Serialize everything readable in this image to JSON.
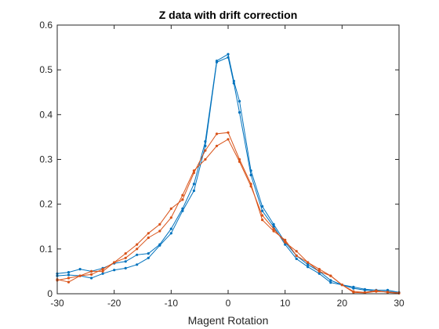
{
  "chart_data": {
    "type": "line",
    "title": "Z data with drift correction",
    "xlabel": "Magent Rotation",
    "ylabel": "",
    "xlim": [
      -30,
      30
    ],
    "ylim": [
      0,
      0.6
    ],
    "xticks": [
      -30,
      -20,
      -10,
      0,
      10,
      20,
      30
    ],
    "xtick_labels": [
      "-30",
      "-20",
      "-10",
      "0",
      "10",
      "20",
      "30"
    ],
    "yticks": [
      0,
      0.1,
      0.2,
      0.3,
      0.4,
      0.5,
      0.6
    ],
    "ytick_labels": [
      "0",
      "0.1",
      "0.2",
      "0.3",
      "0.4",
      "0.5",
      "0.6"
    ],
    "grid": false,
    "legend": "none",
    "series": [
      {
        "color": "#0072BD",
        "x": [
          -30,
          -28,
          -26,
          -24,
          -22,
          -20,
          -18,
          -16,
          -14,
          -12,
          -10,
          -8,
          -6,
          -4,
          -2,
          0,
          1,
          2,
          4,
          6,
          8,
          10,
          12,
          14,
          16,
          18,
          20,
          22,
          24,
          26,
          28,
          30
        ],
        "y": [
          0.045,
          0.048,
          0.055,
          0.05,
          0.057,
          0.068,
          0.072,
          0.087,
          0.09,
          0.11,
          0.145,
          0.19,
          0.245,
          0.34,
          0.52,
          0.535,
          0.475,
          0.43,
          0.275,
          0.195,
          0.155,
          0.115,
          0.085,
          0.065,
          0.05,
          0.03,
          0.02,
          0.015,
          0.01,
          0.008,
          0.008,
          0.003
        ]
      },
      {
        "color": "#0072BD",
        "x": [
          -30,
          -28,
          -26,
          -24,
          -22,
          -20,
          -18,
          -16,
          -14,
          -12,
          -10,
          -8,
          -6,
          -4,
          -2,
          0,
          1,
          2,
          4,
          6,
          8,
          10,
          12,
          14,
          16,
          18,
          20,
          22,
          24,
          26,
          28,
          30
        ],
        "y": [
          0.04,
          0.042,
          0.04,
          0.035,
          0.045,
          0.053,
          0.057,
          0.065,
          0.08,
          0.108,
          0.135,
          0.185,
          0.23,
          0.33,
          0.517,
          0.528,
          0.47,
          0.405,
          0.265,
          0.185,
          0.15,
          0.11,
          0.078,
          0.06,
          0.045,
          0.025,
          0.02,
          0.012,
          0.008,
          0.006,
          0.005,
          0.002
        ]
      },
      {
        "color": "#D95319",
        "x": [
          -30,
          -28,
          -26,
          -24,
          -22,
          -20,
          -18,
          -16,
          -14,
          -12,
          -10,
          -8,
          -6,
          -4,
          -2,
          0,
          2,
          4,
          6,
          8,
          10,
          12,
          14,
          16,
          18,
          20,
          22,
          24,
          26,
          28,
          30
        ],
        "y": [
          0.03,
          0.035,
          0.04,
          0.05,
          0.05,
          0.07,
          0.08,
          0.1,
          0.125,
          0.14,
          0.17,
          0.22,
          0.275,
          0.3,
          0.33,
          0.345,
          0.295,
          0.24,
          0.175,
          0.145,
          0.115,
          0.095,
          0.07,
          0.055,
          0.04,
          0.02,
          0.003,
          0.002,
          0.005,
          0.004,
          0.002
        ]
      },
      {
        "color": "#D95319",
        "x": [
          -30,
          -28,
          -26,
          -24,
          -22,
          -20,
          -18,
          -16,
          -14,
          -12,
          -10,
          -8,
          -6,
          -4,
          -2,
          0,
          2,
          4,
          6,
          8,
          10,
          12,
          14,
          16,
          18,
          20,
          22,
          24,
          26,
          28,
          30
        ],
        "y": [
          0.032,
          0.026,
          0.04,
          0.043,
          0.055,
          0.07,
          0.09,
          0.11,
          0.135,
          0.155,
          0.19,
          0.21,
          0.27,
          0.32,
          0.357,
          0.36,
          0.3,
          0.245,
          0.165,
          0.14,
          0.12,
          0.085,
          0.07,
          0.05,
          0.04,
          0.02,
          0.005,
          0.003,
          0.007,
          0.003,
          0.001
        ]
      }
    ]
  }
}
